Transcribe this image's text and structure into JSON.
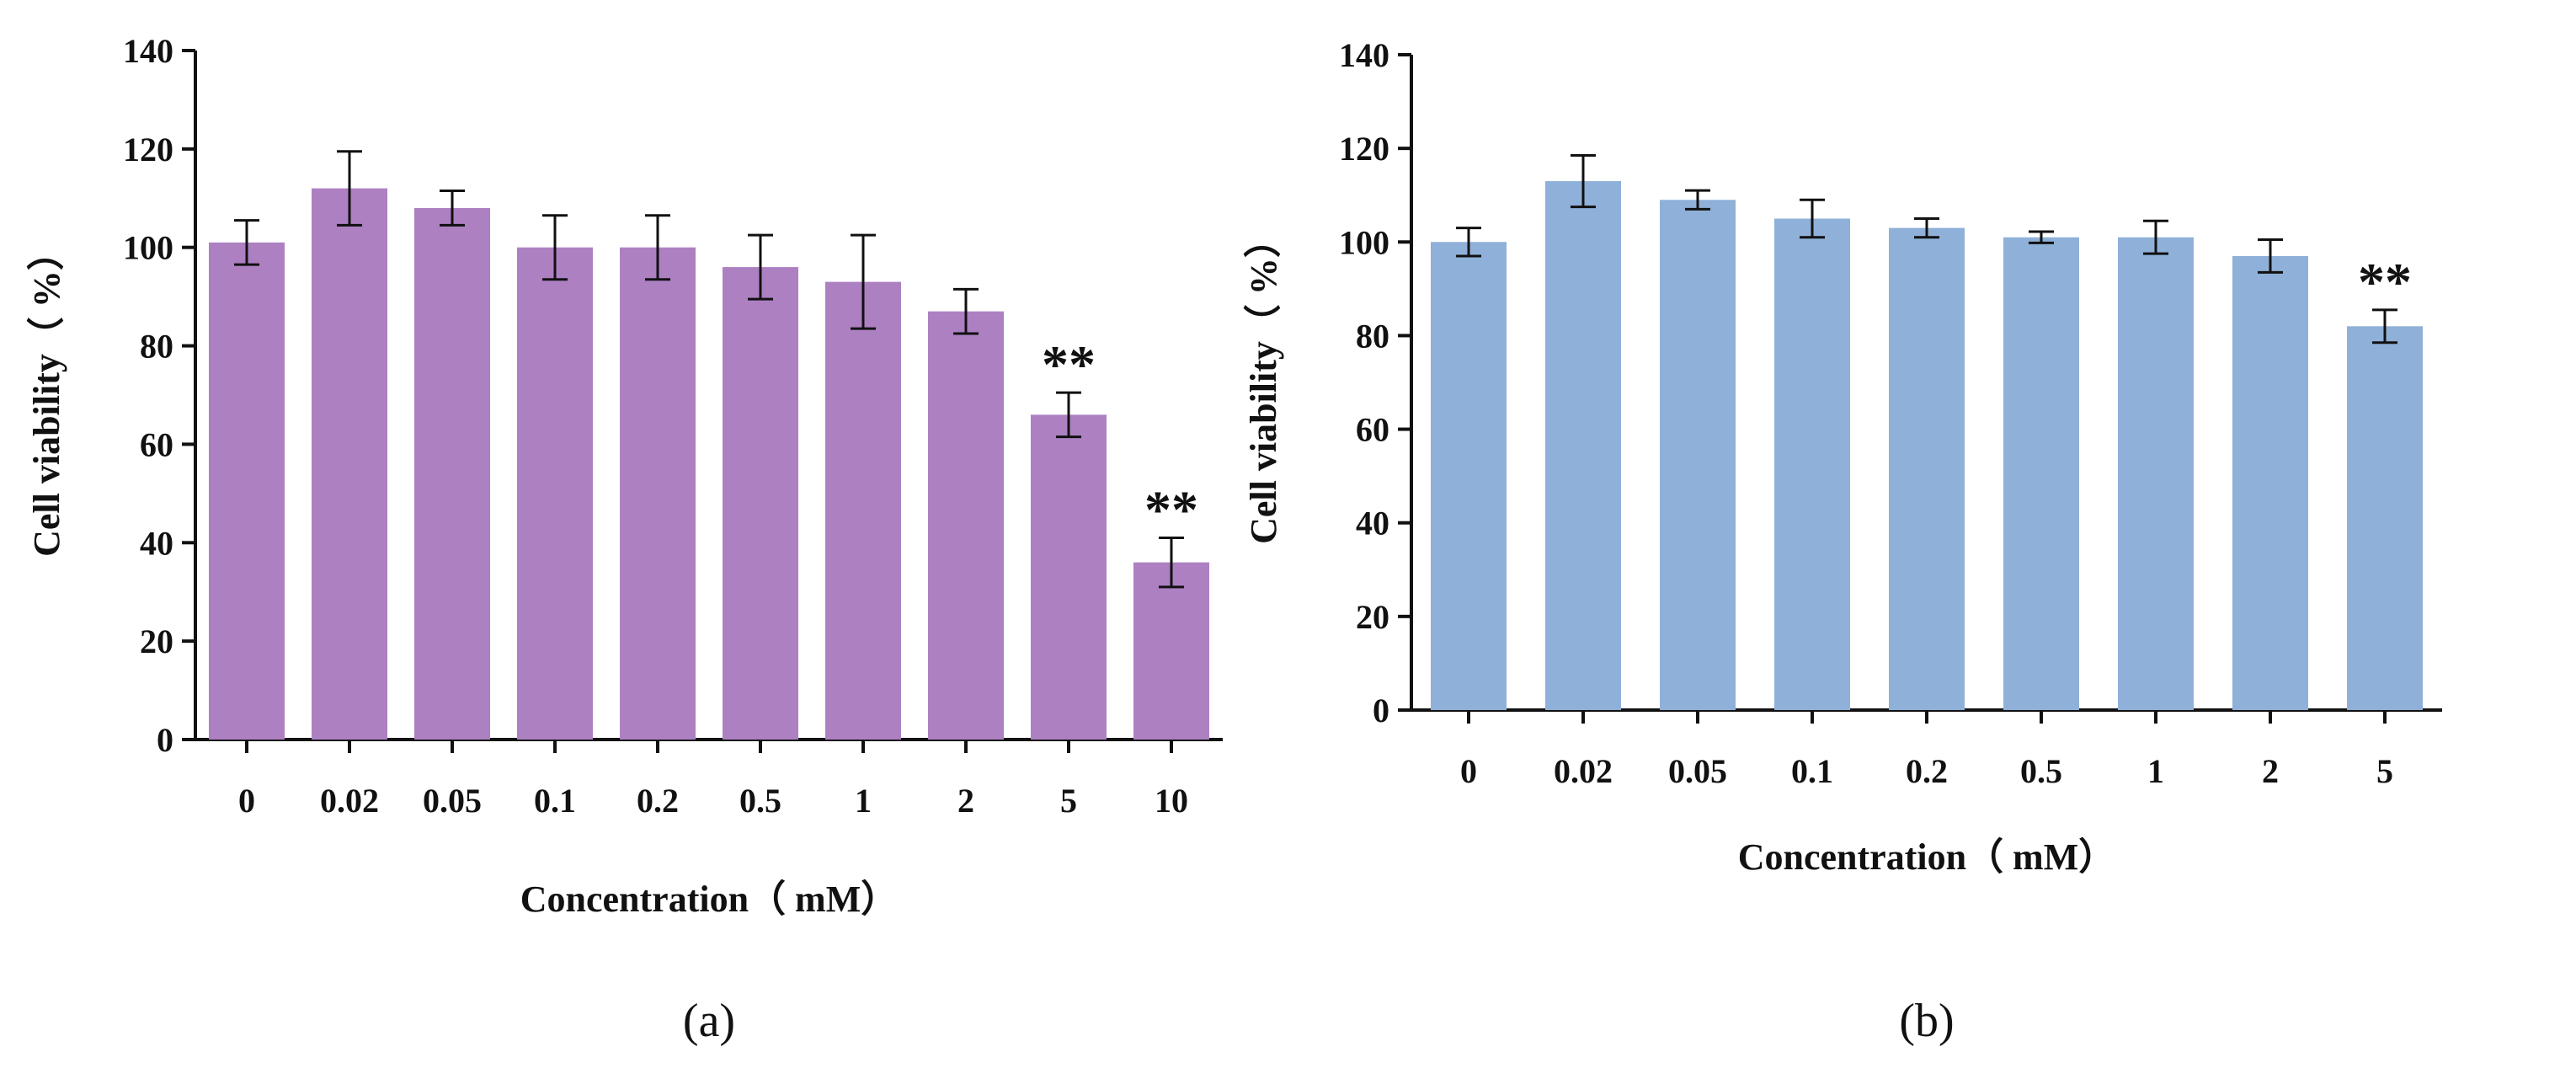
{
  "chart_data": [
    {
      "panel": "(a)",
      "type": "bar",
      "xlabel": "Concentration（ mM）",
      "ylabel": "Cell viability（ %）",
      "ylim": [
        0,
        140
      ],
      "yticks": [
        0,
        20,
        40,
        60,
        80,
        100,
        120,
        140
      ],
      "categories": [
        "0",
        "0.02",
        "0.05",
        "0.1",
        "0.2",
        "0.5",
        "1",
        "2",
        "5",
        "10"
      ],
      "values": [
        101,
        112,
        108,
        100,
        100,
        96,
        93,
        87,
        66,
        36
      ],
      "errors": [
        4.5,
        7.5,
        3.5,
        6.5,
        6.5,
        6.5,
        9.5,
        4.5,
        4.5,
        5
      ],
      "significance": [
        "",
        "",
        "",
        "",
        "",
        "",
        "",
        "",
        "**",
        "**"
      ],
      "color": "#ad80c2"
    },
    {
      "panel": "(b)",
      "type": "bar",
      "xlabel": "Concentration（ mM）",
      "ylabel": "Cell viability（ %）",
      "ylim": [
        0,
        140
      ],
      "yticks": [
        0,
        20,
        40,
        60,
        80,
        100,
        120,
        140
      ],
      "categories": [
        "0",
        "0.02",
        "0.05",
        "0.1",
        "0.2",
        "0.5",
        "1",
        "2",
        "5"
      ],
      "values": [
        100,
        113,
        109,
        105,
        103,
        101,
        101,
        97,
        82
      ],
      "errors": [
        3,
        5.5,
        2,
        4,
        2,
        1.2,
        3.5,
        3.5,
        3.5
      ],
      "significance": [
        "",
        "",
        "",
        "",
        "",
        "",
        "",
        "",
        "**"
      ],
      "color": "#8fb0d8"
    }
  ]
}
